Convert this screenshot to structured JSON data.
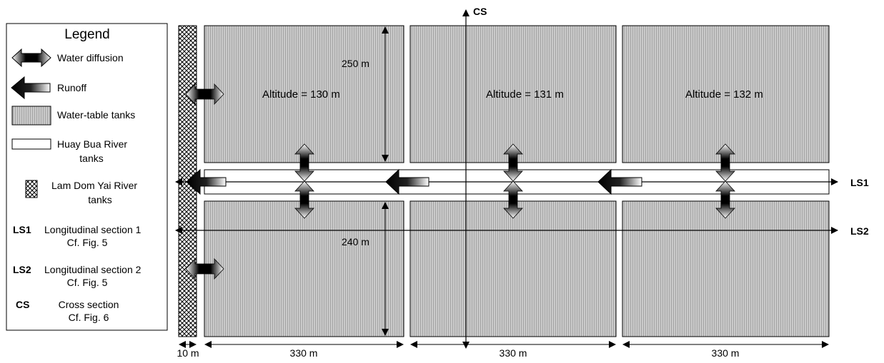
{
  "legend": {
    "title": "Legend",
    "water_diffusion": "Water diffusion",
    "runoff": "Runoff",
    "water_table_tanks": "Water-table tanks",
    "huay_bua_line1": "Huay Bua River",
    "huay_bua_line2": "tanks",
    "lam_dom_line1": "Lam Dom Yai River",
    "lam_dom_line2": "tanks",
    "ls1_code": "LS1",
    "ls1_line1": "Longitudinal section 1",
    "ls1_line2": "Cf. Fig. 5",
    "ls2_code": "LS2",
    "ls2_line1": "Longitudinal section 2",
    "ls2_line2": "Cf. Fig. 5",
    "cs_code": "CS",
    "cs_line1": "Cross section",
    "cs_line2": "Cf. Fig. 6"
  },
  "blocks": {
    "altitude_1": "Altitude  =  130  m",
    "altitude_2": "Altitude  =  131  m",
    "altitude_3": "Altitude  =  132  m"
  },
  "dimensions": {
    "height_top": "250  m",
    "height_bottom": "240  m",
    "width_1": "330  m",
    "width_2": "330  m",
    "width_3": "330  m",
    "lam_dom_width": "10 m"
  },
  "sections": {
    "cs": "CS",
    "ls1": "LS1",
    "ls2": "LS2"
  },
  "colors": {
    "tank_fill": "#c8c8c8",
    "tank_stripe": "#a9a9a9",
    "river_fill": "#ffffff",
    "line": "#000000"
  }
}
